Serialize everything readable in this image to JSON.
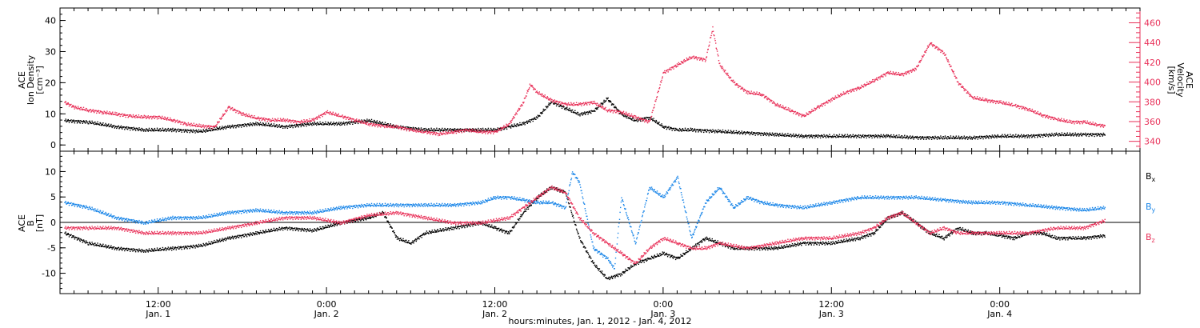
{
  "colors": {
    "black": "#000000",
    "pink": "#e8325a",
    "blue": "#1a86e8"
  },
  "x_axis": {
    "label": "hours:minutes, Jan.  1, 2012 - Jan.  4, 2012",
    "ticks": [
      {
        "time": "12:00",
        "date": "Jan. 1",
        "t": 12
      },
      {
        "time": "0:00",
        "date": "Jan. 2",
        "t": 24
      },
      {
        "time": "12:00",
        "date": "Jan. 2",
        "t": 36
      },
      {
        "time": "0:00",
        "date": "Jan. 3",
        "t": 48
      },
      {
        "time": "12:00",
        "date": "Jan. 3",
        "t": 60
      },
      {
        "time": "0:00",
        "date": "Jan. 4",
        "t": 72
      }
    ]
  },
  "top_panel": {
    "left_label": [
      "ACE",
      "Ion Density",
      "[cm⁻³]"
    ],
    "right_label": [
      "ACE",
      "Velocity",
      "[km/s]"
    ]
  },
  "bottom_panel": {
    "left_label": [
      "ACE",
      "B",
      "[nT]"
    ],
    "legend": [
      {
        "name": "Bx",
        "base": "B",
        "sub": "x",
        "color": "#000000"
      },
      {
        "name": "By",
        "base": "B",
        "sub": "y",
        "color": "#1a86e8"
      },
      {
        "name": "Bz",
        "base": "B",
        "sub": "z",
        "color": "#e8325a"
      }
    ]
  },
  "chart_data": [
    {
      "type": "scatter",
      "title": "",
      "xlabel": "hours:minutes, Jan.  1, 2012 - Jan.  4, 2012",
      "x_units": "hours since 0:00 Jan. 1, 2012",
      "xlim": [
        5,
        82
      ],
      "axes": [
        {
          "side": "left",
          "label": "ACE Ion Density [cm⁻³]",
          "ylim": [
            -2,
            44
          ],
          "ticks": [
            0,
            10,
            20,
            30,
            40
          ]
        },
        {
          "side": "right",
          "label": "ACE Velocity [km/s]",
          "ylim": [
            330,
            475
          ],
          "ticks": [
            340,
            360,
            380,
            400,
            420,
            440,
            460
          ]
        }
      ],
      "series": [
        {
          "name": "Ion Density",
          "axis": "left",
          "color": "#000000",
          "x": [
            5.3,
            7,
            9,
            11,
            13,
            15,
            17,
            19,
            21,
            23,
            25,
            27,
            29,
            31,
            33,
            35,
            36,
            37,
            38,
            39,
            40,
            41,
            42,
            43,
            44,
            45,
            46,
            47,
            48,
            49,
            50,
            52,
            54,
            56,
            58,
            60,
            62,
            64,
            66,
            68,
            70,
            72,
            74,
            76,
            78,
            79.5
          ],
          "y": [
            8,
            7.5,
            6,
            5,
            5,
            4.5,
            6,
            7,
            6,
            7,
            7,
            8,
            6,
            5,
            5,
            5,
            5,
            6,
            7,
            9,
            14,
            12,
            10,
            11,
            15,
            10,
            8,
            9,
            6,
            5,
            5,
            4.5,
            4,
            3.5,
            3,
            3,
            3,
            3,
            2.5,
            2.5,
            2.5,
            3,
            3,
            3.5,
            3.5,
            3.5
          ]
        },
        {
          "name": "Velocity",
          "axis": "right",
          "color": "#e8325a",
          "x": [
            5.3,
            6,
            7,
            8,
            9,
            10,
            11,
            12,
            13,
            14,
            15,
            16,
            17,
            18,
            19,
            20,
            21,
            22,
            23,
            24,
            25,
            26,
            27,
            28,
            29,
            30,
            31,
            32,
            33,
            34,
            35,
            36,
            37,
            38,
            38.5,
            39,
            40,
            41,
            42,
            43,
            44,
            45,
            46,
            47,
            48,
            49,
            50,
            51,
            51.5,
            52,
            53,
            54,
            55,
            56,
            57,
            58,
            59,
            60,
            61,
            62,
            63,
            64,
            65,
            66,
            67,
            68,
            69,
            70,
            71,
            72,
            73,
            74,
            75,
            76,
            77,
            78,
            79,
            79.5
          ],
          "y": [
            380,
            375,
            372,
            370,
            368,
            366,
            365,
            365,
            362,
            358,
            356,
            355,
            375,
            368,
            364,
            362,
            362,
            360,
            362,
            370,
            366,
            362,
            358,
            356,
            355,
            352,
            350,
            348,
            350,
            352,
            350,
            350,
            358,
            380,
            398,
            390,
            382,
            378,
            378,
            380,
            372,
            370,
            365,
            360,
            410,
            418,
            426,
            423,
            455,
            418,
            400,
            390,
            388,
            378,
            372,
            366,
            375,
            383,
            390,
            395,
            402,
            410,
            408,
            414,
            440,
            430,
            400,
            385,
            382,
            380,
            377,
            373,
            367,
            363,
            360,
            360,
            357,
            356
          ]
        }
      ]
    },
    {
      "type": "scatter",
      "title": "",
      "xlabel": "hours:minutes, Jan.  1, 2012 - Jan.  4, 2012",
      "x_units": "hours since 0:00 Jan. 1, 2012",
      "xlim": [
        5,
        82
      ],
      "ylim": [
        -14,
        14
      ],
      "yticks": [
        -10,
        -5,
        0,
        5,
        10
      ],
      "ylabel": "ACE B [nT]",
      "zero_line": true,
      "series": [
        {
          "name": "Bx",
          "color": "#000000",
          "x": [
            5.3,
            7,
            9,
            11,
            13,
            15,
            17,
            19,
            21,
            23,
            25,
            27,
            28,
            29,
            30,
            31,
            33,
            35,
            36,
            37,
            38,
            39,
            40,
            41,
            42,
            43,
            44,
            45,
            46,
            47,
            48,
            49,
            50,
            51,
            52,
            53,
            54,
            56,
            58,
            60,
            62,
            63,
            64,
            65,
            66,
            67,
            68,
            69,
            70,
            71,
            72,
            73,
            74,
            75,
            76,
            77,
            78,
            79.5
          ],
          "y": [
            -2,
            -4,
            -5,
            -5.5,
            -5,
            -4.5,
            -3,
            -2,
            -1,
            -1.5,
            0,
            1,
            2,
            -3,
            -4,
            -2,
            -1,
            0,
            -1,
            -2,
            2,
            5,
            7,
            6,
            -3,
            -8,
            -11,
            -10,
            -8,
            -7,
            -6,
            -7,
            -5,
            -3,
            -4,
            -5,
            -5,
            -5,
            -4,
            -4,
            -3,
            -2,
            1,
            2,
            0,
            -2,
            -3,
            -1,
            -2,
            -2,
            -2.5,
            -3,
            -2,
            -2,
            -3,
            -3,
            -3,
            -2.5
          ]
        },
        {
          "name": "By",
          "color": "#1a86e8",
          "x": [
            5.3,
            7,
            9,
            11,
            13,
            15,
            17,
            19,
            21,
            23,
            25,
            27,
            29,
            31,
            33,
            35,
            36,
            37,
            38,
            39,
            40,
            41,
            41.5,
            42,
            43,
            44,
            44.5,
            45,
            46,
            47,
            48,
            49,
            50,
            51,
            52,
            53,
            54,
            55,
            56,
            58,
            60,
            62,
            64,
            66,
            68,
            70,
            72,
            74,
            76,
            78,
            79.5
          ],
          "y": [
            4,
            3,
            1,
            0,
            1,
            1,
            2,
            2.5,
            2,
            2,
            3,
            3.5,
            3.5,
            3.5,
            3.5,
            4,
            5,
            5,
            4.5,
            4,
            4,
            3,
            10,
            8,
            -5,
            -7,
            -9,
            5,
            -4,
            7,
            5,
            9,
            -3,
            4,
            7,
            3,
            5,
            4,
            3.5,
            3,
            4,
            5,
            5,
            5,
            4.5,
            4,
            4,
            3.5,
            3,
            2.5,
            3
          ]
        },
        {
          "name": "Bz",
          "color": "#e8325a",
          "x": [
            5.3,
            7,
            9,
            11,
            13,
            15,
            17,
            19,
            21,
            23,
            25,
            27,
            29,
            31,
            33,
            35,
            37,
            38,
            39,
            40,
            41,
            42,
            43,
            44,
            45,
            46,
            47,
            48,
            49,
            50,
            51,
            52,
            54,
            56,
            58,
            60,
            62,
            63,
            64,
            65,
            66,
            67,
            68,
            69,
            70,
            72,
            74,
            76,
            78,
            79.5
          ],
          "y": [
            -1,
            -1,
            -1,
            -2,
            -2,
            -2,
            -1,
            0,
            1,
            1,
            0,
            1.5,
            2,
            1,
            0,
            0,
            1,
            3,
            5,
            7,
            6,
            1,
            -2,
            -4,
            -6,
            -8,
            -5,
            -3,
            -4,
            -5,
            -5,
            -4,
            -5,
            -4,
            -3,
            -3,
            -2,
            -1,
            1,
            2,
            0,
            -2,
            -1,
            -2,
            -2,
            -2,
            -2,
            -1,
            -1,
            0.5
          ]
        }
      ]
    }
  ]
}
